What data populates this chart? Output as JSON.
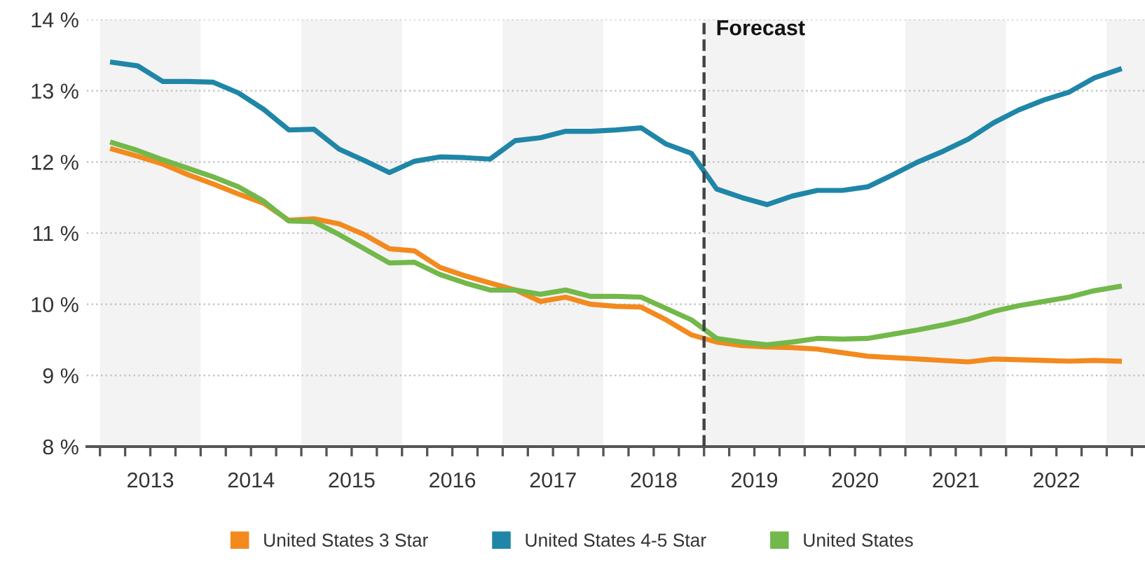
{
  "chart_data": {
    "type": "line",
    "x": [
      2013.125,
      2013.375,
      2013.625,
      2013.875,
      2014.125,
      2014.375,
      2014.625,
      2014.875,
      2015.125,
      2015.375,
      2015.625,
      2015.875,
      2016.125,
      2016.375,
      2016.625,
      2016.875,
      2017.125,
      2017.375,
      2017.625,
      2017.875,
      2018.125,
      2018.375,
      2018.625,
      2018.875,
      2019.125,
      2019.375,
      2019.625,
      2019.875,
      2020.125,
      2020.375,
      2020.625,
      2020.875,
      2021.125,
      2021.375,
      2021.625,
      2021.875,
      2022.125,
      2022.375,
      2022.625,
      2022.875,
      2023.125
    ],
    "series": [
      {
        "name": "United States 3 Star",
        "color": "#f28a1e",
        "values": [
          12.18,
          12.08,
          11.97,
          11.82,
          11.69,
          11.55,
          11.42,
          11.18,
          11.2,
          11.13,
          10.98,
          10.78,
          10.75,
          10.52,
          10.4,
          10.3,
          10.2,
          10.04,
          10.1,
          10.0,
          9.97,
          9.96,
          9.78,
          9.57,
          9.47,
          9.42,
          9.4,
          9.39,
          9.37,
          9.32,
          9.27,
          9.25,
          9.23,
          9.21,
          9.19,
          9.23,
          9.22,
          9.21,
          9.2,
          9.21,
          9.2
        ]
      },
      {
        "name": "United States 4-5 Star",
        "color": "#1f86a8",
        "values": [
          13.4,
          13.35,
          13.13,
          13.13,
          13.12,
          12.97,
          12.74,
          12.45,
          12.46,
          12.18,
          12.02,
          11.85,
          12.01,
          12.07,
          12.06,
          12.04,
          12.3,
          12.34,
          12.43,
          12.43,
          12.45,
          12.48,
          12.25,
          12.12,
          11.62,
          11.5,
          11.4,
          11.52,
          11.6,
          11.6,
          11.65,
          11.82,
          12.0,
          12.15,
          12.32,
          12.55,
          12.73,
          12.87,
          12.98,
          13.18,
          13.3
        ]
      },
      {
        "name": "United States",
        "color": "#72b84a",
        "values": [
          12.27,
          12.16,
          12.03,
          11.91,
          11.79,
          11.65,
          11.45,
          11.17,
          11.16,
          10.98,
          10.78,
          10.58,
          10.59,
          10.42,
          10.3,
          10.2,
          10.2,
          10.14,
          10.2,
          10.11,
          10.11,
          10.1,
          9.94,
          9.78,
          9.52,
          9.47,
          9.43,
          9.47,
          9.52,
          9.51,
          9.52,
          9.58,
          9.64,
          9.71,
          9.79,
          9.9,
          9.98,
          10.04,
          10.1,
          10.19,
          10.25
        ]
      }
    ],
    "xlim": [
      2012.87,
      2023.38
    ],
    "xticks": [
      {
        "value": 2013,
        "label": null
      },
      {
        "value": 2013.25,
        "label": null
      },
      {
        "value": 2013.5,
        "label": "2013"
      },
      {
        "value": 2013.75,
        "label": null
      },
      {
        "value": 2014,
        "label": null
      },
      {
        "value": 2014.25,
        "label": null
      },
      {
        "value": 2014.5,
        "label": "2014"
      },
      {
        "value": 2014.75,
        "label": null
      },
      {
        "value": 2015,
        "label": null
      },
      {
        "value": 2015.25,
        "label": null
      },
      {
        "value": 2015.5,
        "label": "2015"
      },
      {
        "value": 2015.75,
        "label": null
      },
      {
        "value": 2016,
        "label": null
      },
      {
        "value": 2016.25,
        "label": null
      },
      {
        "value": 2016.5,
        "label": "2016"
      },
      {
        "value": 2016.75,
        "label": null
      },
      {
        "value": 2017,
        "label": null
      },
      {
        "value": 2017.25,
        "label": null
      },
      {
        "value": 2017.5,
        "label": "2017"
      },
      {
        "value": 2017.75,
        "label": null
      },
      {
        "value": 2018,
        "label": null
      },
      {
        "value": 2018.25,
        "label": null
      },
      {
        "value": 2018.5,
        "label": "2018"
      },
      {
        "value": 2018.75,
        "label": null
      },
      {
        "value": 2019,
        "label": null
      },
      {
        "value": 2019.25,
        "label": null
      },
      {
        "value": 2019.5,
        "label": "2019"
      },
      {
        "value": 2019.75,
        "label": null
      },
      {
        "value": 2020,
        "label": null
      },
      {
        "value": 2020.25,
        "label": null
      },
      {
        "value": 2020.5,
        "label": "2020"
      },
      {
        "value": 2020.75,
        "label": null
      },
      {
        "value": 2021,
        "label": null
      },
      {
        "value": 2021.25,
        "label": null
      },
      {
        "value": 2021.5,
        "label": "2021"
      },
      {
        "value": 2021.75,
        "label": null
      },
      {
        "value": 2022,
        "label": null
      },
      {
        "value": 2022.25,
        "label": null
      },
      {
        "value": 2022.5,
        "label": "2022"
      },
      {
        "value": 2022.75,
        "label": null
      },
      {
        "value": 2023,
        "label": null
      },
      {
        "value": 2023.25,
        "label": null
      }
    ],
    "ylim": [
      8,
      14
    ],
    "yticks": [
      {
        "value": 8,
        "label": "8 %"
      },
      {
        "value": 9,
        "label": "9 %"
      },
      {
        "value": 10,
        "label": "10 %"
      },
      {
        "value": 11,
        "label": "11 %"
      },
      {
        "value": 12,
        "label": "12 %"
      },
      {
        "value": 13,
        "label": "13 %"
      },
      {
        "value": 14,
        "label": "14 %"
      }
    ],
    "grid": "y",
    "legend": "bottom",
    "marker": "none",
    "line_style": "solid",
    "ref_lines": [
      {
        "axis": "x",
        "value": 2019,
        "label": "Forecast",
        "color": "#444444",
        "line_style": "dashed"
      }
    ],
    "bands": [
      {
        "axis": "x",
        "from": 2013,
        "to": 2014,
        "color": "#f3f3f3"
      },
      {
        "axis": "x",
        "from": 2015,
        "to": 2016,
        "color": "#f3f3f3"
      },
      {
        "axis": "x",
        "from": 2017,
        "to": 2018,
        "color": "#f3f3f3"
      },
      {
        "axis": "x",
        "from": 2019,
        "to": 2020,
        "color": "#f3f3f3"
      },
      {
        "axis": "x",
        "from": 2021,
        "to": 2022,
        "color": "#f3f3f3"
      },
      {
        "axis": "x",
        "from": 2023,
        "to": 2023.38,
        "color": "#f3f3f3"
      }
    ]
  }
}
